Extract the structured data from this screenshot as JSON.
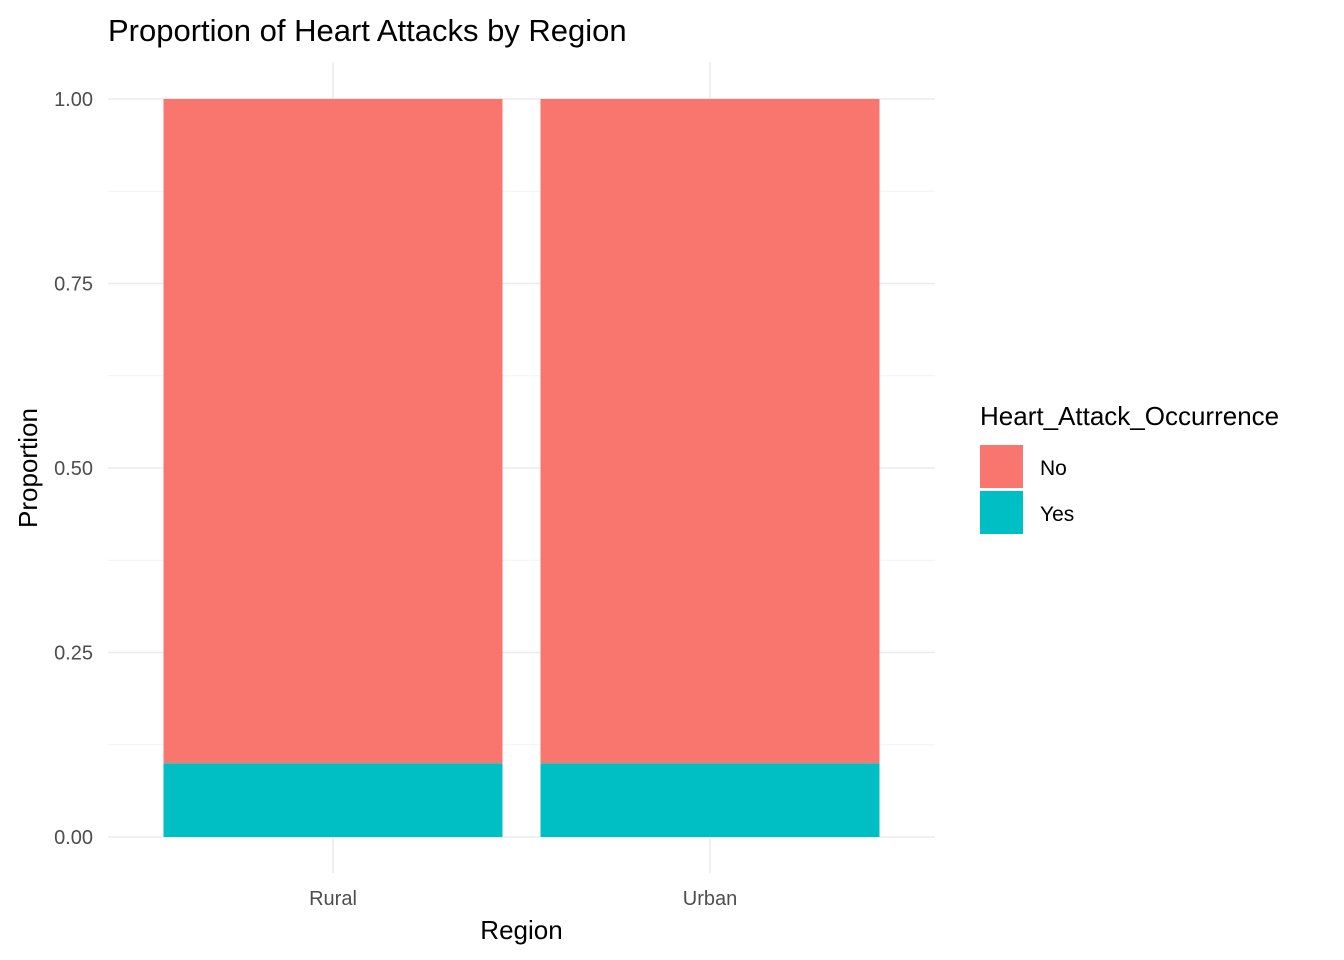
{
  "chart_data": {
    "type": "bar",
    "stacked": true,
    "title": "Proportion of Heart Attacks by Region",
    "xlabel": "Region",
    "ylabel": "Proportion",
    "categories": [
      "Rural",
      "Urban"
    ],
    "series": [
      {
        "name": "No",
        "values": [
          0.9,
          0.9
        ],
        "color": "#F8766D"
      },
      {
        "name": "Yes",
        "values": [
          0.1,
          0.1
        ],
        "color": "#00BFC4"
      }
    ],
    "ylim": [
      0,
      1
    ],
    "yticks": [
      "0.00",
      "0.25",
      "0.50",
      "0.75",
      "1.00"
    ],
    "grid": true,
    "legend": {
      "title": "Heart_Attack_Occurrence",
      "placement": "right",
      "entries": [
        "No",
        "Yes"
      ]
    }
  }
}
